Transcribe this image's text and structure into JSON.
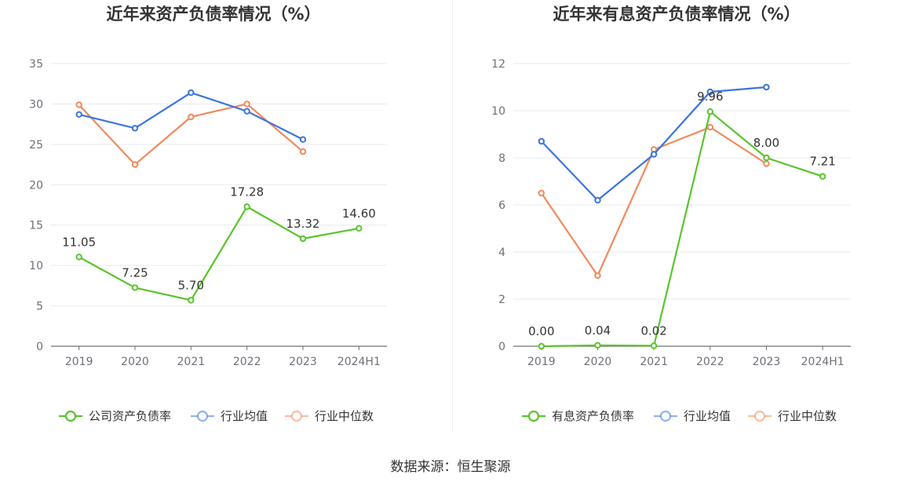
{
  "source_label": "数据来源：恒生聚源",
  "chart_data": [
    {
      "type": "line",
      "title": "近年来资产负债率情况（%）",
      "categories": [
        "2019",
        "2020",
        "2021",
        "2022",
        "2023",
        "2024H1"
      ],
      "ylim": [
        0,
        35
      ],
      "yticks": [
        0,
        5,
        10,
        15,
        20,
        25,
        30,
        35
      ],
      "grid": true,
      "legend_position": "bottom",
      "series": [
        {
          "name": "公司资产负债率",
          "color": "#5ac42c",
          "values": [
            11.05,
            7.25,
            5.7,
            17.28,
            13.32,
            14.6
          ],
          "labels": [
            "11.05",
            "7.25",
            "5.70",
            "17.28",
            "13.32",
            "14.60"
          ]
        },
        {
          "name": "行业均值",
          "color": "#3c74e0",
          "values": [
            28.7,
            27.0,
            31.4,
            29.1,
            25.6,
            null
          ]
        },
        {
          "name": "行业中位数",
          "color": "#f08a5d",
          "values": [
            29.9,
            22.5,
            28.4,
            30.0,
            24.1,
            null
          ]
        }
      ]
    },
    {
      "type": "line",
      "title": "近年来有息资产负债率情况（%）",
      "categories": [
        "2019",
        "2020",
        "2021",
        "2022",
        "2023",
        "2024H1"
      ],
      "ylim": [
        0,
        12
      ],
      "yticks": [
        0,
        2,
        4,
        6,
        8,
        10,
        12
      ],
      "grid": true,
      "legend_position": "bottom",
      "series": [
        {
          "name": "有息资产负债率",
          "color": "#5ac42c",
          "values": [
            0.0,
            0.04,
            0.02,
            9.96,
            8.0,
            7.21
          ],
          "labels": [
            "0.00",
            "0.04",
            "0.02",
            "9.96",
            "8.00",
            "7.21"
          ]
        },
        {
          "name": "行业均值",
          "color": "#3c74e0",
          "values": [
            8.7,
            6.2,
            8.15,
            10.8,
            11.0,
            null
          ]
        },
        {
          "name": "行业中位数",
          "color": "#f08a5d",
          "values": [
            6.5,
            3.0,
            8.35,
            9.3,
            7.75,
            null
          ]
        }
      ]
    }
  ]
}
